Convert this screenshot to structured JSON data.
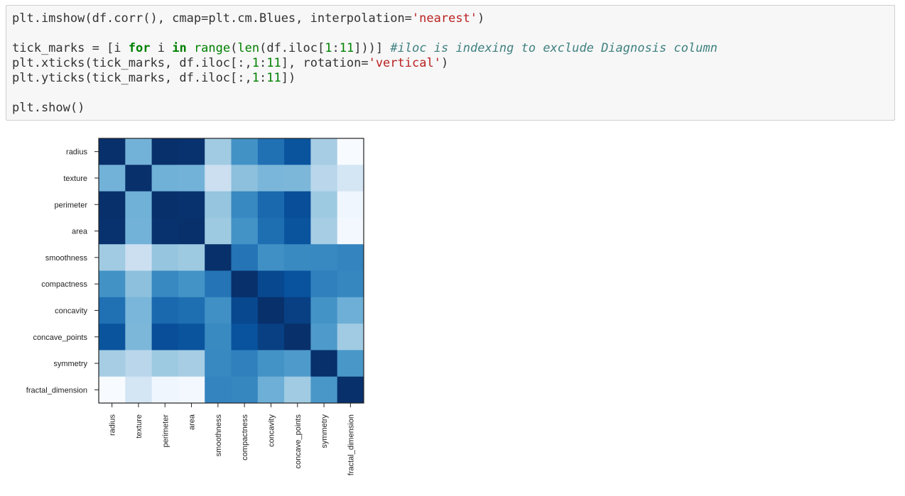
{
  "code_cell": {
    "lines": [
      [
        {
          "t": "plt.imshow(df.corr(), cmap=plt.cm.Blues, interpolation=",
          "c": ""
        },
        {
          "t": "'nearest'",
          "c": "str"
        },
        {
          "t": ")",
          "c": ""
        }
      ],
      [],
      [
        {
          "t": "tick_marks = [i ",
          "c": ""
        },
        {
          "t": "for",
          "c": "kw"
        },
        {
          "t": " i ",
          "c": ""
        },
        {
          "t": "in",
          "c": "kw"
        },
        {
          "t": " ",
          "c": ""
        },
        {
          "t": "range",
          "c": "bi"
        },
        {
          "t": "(",
          "c": ""
        },
        {
          "t": "len",
          "c": "bi"
        },
        {
          "t": "(df.iloc[",
          "c": ""
        },
        {
          "t": "1",
          "c": "num"
        },
        {
          "t": ":",
          "c": ""
        },
        {
          "t": "11",
          "c": "num"
        },
        {
          "t": "]))] ",
          "c": ""
        },
        {
          "t": "#iloc is indexing to exclude Diagnosis column",
          "c": "cmt"
        }
      ],
      [
        {
          "t": "plt.xticks(tick_marks, df.iloc[:,",
          "c": ""
        },
        {
          "t": "1",
          "c": "num"
        },
        {
          "t": ":",
          "c": ""
        },
        {
          "t": "11",
          "c": "num"
        },
        {
          "t": "], rotation=",
          "c": ""
        },
        {
          "t": "'vertical'",
          "c": "str"
        },
        {
          "t": ")",
          "c": ""
        }
      ],
      [
        {
          "t": "plt.yticks(tick_marks, df.iloc[:,",
          "c": ""
        },
        {
          "t": "1",
          "c": "num"
        },
        {
          "t": ":",
          "c": ""
        },
        {
          "t": "11",
          "c": "num"
        },
        {
          "t": "])",
          "c": ""
        }
      ],
      [],
      [
        {
          "t": "plt.show()",
          "c": ""
        }
      ]
    ]
  },
  "chart_data": {
    "type": "heatmap",
    "colormap": "Blues",
    "labels": [
      "radius",
      "texture",
      "perimeter",
      "area",
      "smoothness",
      "compactness",
      "concavity",
      "concave_points",
      "symmetry",
      "fractal_dimension"
    ],
    "values": [
      [
        1.0,
        0.32,
        1.0,
        0.99,
        0.17,
        0.51,
        0.68,
        0.82,
        0.15,
        -0.31
      ],
      [
        0.32,
        1.0,
        0.33,
        0.32,
        -0.02,
        0.24,
        0.3,
        0.29,
        0.07,
        -0.08
      ],
      [
        1.0,
        0.33,
        1.0,
        0.99,
        0.21,
        0.56,
        0.72,
        0.85,
        0.18,
        -0.26
      ],
      [
        0.99,
        0.32,
        0.99,
        1.0,
        0.18,
        0.5,
        0.69,
        0.82,
        0.15,
        -0.28
      ],
      [
        0.17,
        -0.02,
        0.21,
        0.18,
        1.0,
        0.66,
        0.52,
        0.55,
        0.56,
        0.58
      ],
      [
        0.51,
        0.24,
        0.56,
        0.5,
        0.66,
        1.0,
        0.88,
        0.83,
        0.6,
        0.57
      ],
      [
        0.68,
        0.3,
        0.72,
        0.69,
        0.52,
        0.88,
        1.0,
        0.92,
        0.5,
        0.34
      ],
      [
        0.82,
        0.29,
        0.85,
        0.82,
        0.55,
        0.83,
        0.92,
        1.0,
        0.46,
        0.17
      ],
      [
        0.15,
        0.07,
        0.18,
        0.15,
        0.56,
        0.6,
        0.5,
        0.46,
        1.0,
        0.48
      ],
      [
        -0.31,
        -0.08,
        -0.26,
        -0.28,
        0.58,
        0.57,
        0.34,
        0.17,
        0.48,
        1.0
      ]
    ],
    "vmin": -0.31,
    "vmax": 1.0
  }
}
